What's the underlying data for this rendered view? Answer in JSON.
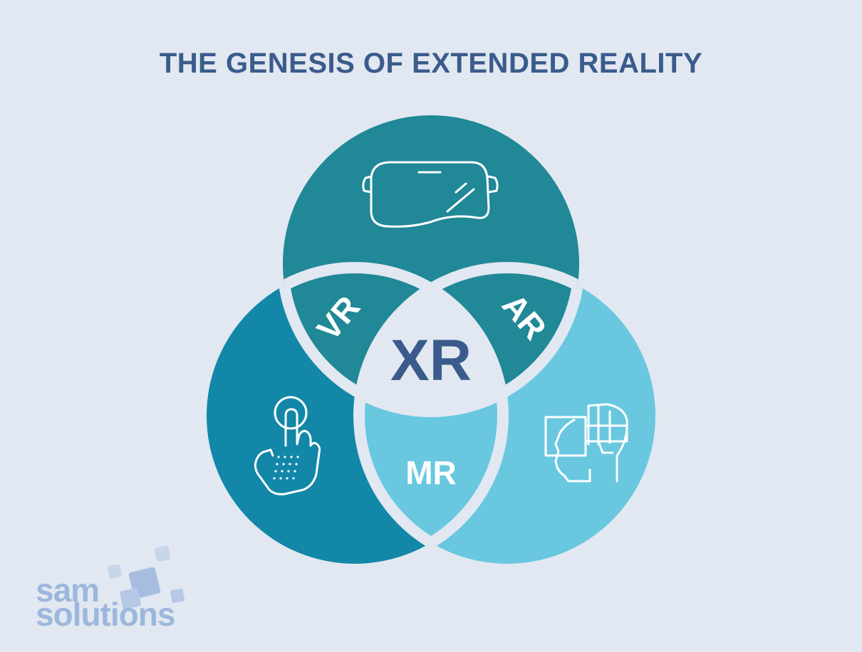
{
  "title": "THE GENESIS OF EXTENDED REALITY",
  "diagram": {
    "center_label": "XR",
    "regions": [
      {
        "label": "VR",
        "color": "#208896"
      },
      {
        "label": "AR",
        "color": "#69c7e0"
      },
      {
        "label": "MR",
        "color": "#1287a8"
      }
    ],
    "center_color": "#e1e8f1",
    "icons": [
      "vr-headset-icon",
      "touch-hand-icon",
      "ar-headset-head-icon"
    ]
  },
  "logo": {
    "line1": "sam",
    "line2": "solutions",
    "color": "#9db7dc"
  }
}
